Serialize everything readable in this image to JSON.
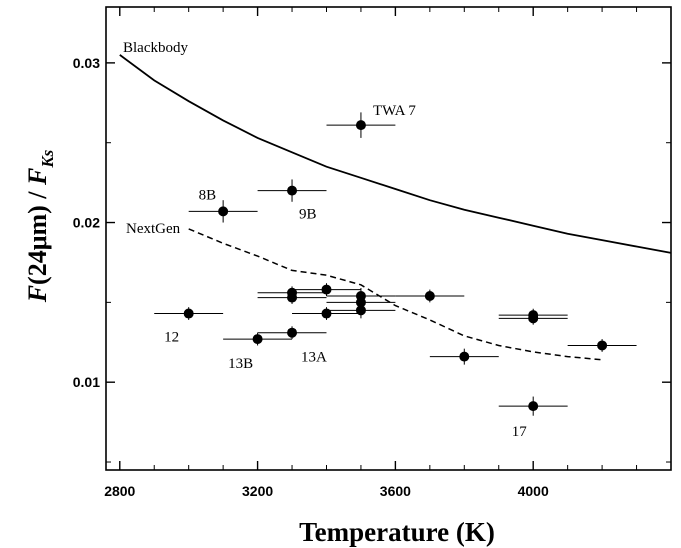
{
  "chart_data": {
    "type": "scatter",
    "title": "",
    "xlabel": "Temperature  (K)",
    "ylabel": {
      "prefix": "F",
      "middle": "(24μm) / ",
      "f": "F",
      "sub": "Ks"
    },
    "xlim": [
      2760,
      4400
    ],
    "ylim": [
      0.0045,
      0.0335
    ],
    "xticks": [
      2800,
      3200,
      3600,
      4000
    ],
    "xtick_labels": [
      "2800",
      "3200",
      "3600",
      "4000"
    ],
    "yticks": [
      0.01,
      0.02,
      0.03
    ],
    "ytick_labels": [
      "0.01",
      "0.02",
      "0.03"
    ],
    "grid": false,
    "series": [
      {
        "name": "Blackbody",
        "type": "line",
        "style": "solid",
        "x": [
          2800,
          2900,
          3000,
          3100,
          3200,
          3300,
          3400,
          3500,
          3600,
          3700,
          3800,
          3900,
          4000,
          4100,
          4200,
          4300,
          4400
        ],
        "y": [
          0.0305,
          0.0289,
          0.0276,
          0.0264,
          0.0253,
          0.0244,
          0.0235,
          0.0228,
          0.0221,
          0.0214,
          0.0208,
          0.0203,
          0.0198,
          0.0193,
          0.0189,
          0.0185,
          0.0181
        ]
      },
      {
        "name": "NextGen",
        "type": "line",
        "style": "dashed",
        "x": [
          3000,
          3100,
          3200,
          3300,
          3400,
          3500,
          3600,
          3700,
          3800,
          3900,
          4000,
          4100,
          4200
        ],
        "y": [
          0.0196,
          0.0187,
          0.0179,
          0.017,
          0.0167,
          0.0161,
          0.0148,
          0.0139,
          0.0129,
          0.0123,
          0.0119,
          0.0116,
          0.0114
        ]
      },
      {
        "name": "",
        "type": "points",
        "points": [
          {
            "x": 3500,
            "y": 0.0261,
            "xerr": 100,
            "yerr": 0.0008,
            "label": "TWA 7"
          },
          {
            "x": 3300,
            "y": 0.022,
            "xerr": 100,
            "yerr": 0.0007,
            "label": "9B"
          },
          {
            "x": 3100,
            "y": 0.0207,
            "xerr": 100,
            "yerr": 0.0007,
            "label": "8B"
          },
          {
            "x": 3000,
            "y": 0.0143,
            "xerr": 100,
            "yerr": 0.0004,
            "label": "12"
          },
          {
            "x": 3200,
            "y": 0.0127,
            "xerr": 100,
            "yerr": 0.0004,
            "label": "13B"
          },
          {
            "x": 3300,
            "y": 0.0131,
            "xerr": 100,
            "yerr": 0.0004,
            "label": "13A"
          },
          {
            "x": 3300,
            "y": 0.0156,
            "xerr": 100,
            "yerr": 0.0004,
            "label": ""
          },
          {
            "x": 3300,
            "y": 0.0153,
            "xerr": 100,
            "yerr": 0.0004,
            "label": ""
          },
          {
            "x": 3400,
            "y": 0.0158,
            "xerr": 100,
            "yerr": 0.0004,
            "label": ""
          },
          {
            "x": 3400,
            "y": 0.0143,
            "xerr": 100,
            "yerr": 0.0004,
            "label": ""
          },
          {
            "x": 3500,
            "y": 0.0154,
            "xerr": 100,
            "yerr": 0.0005,
            "label": ""
          },
          {
            "x": 3500,
            "y": 0.015,
            "xerr": 100,
            "yerr": 0.0005,
            "label": ""
          },
          {
            "x": 3500,
            "y": 0.0145,
            "xerr": 100,
            "yerr": 0.0005,
            "label": ""
          },
          {
            "x": 3700,
            "y": 0.0154,
            "xerr": 100,
            "yerr": 0.0004,
            "label": ""
          },
          {
            "x": 3800,
            "y": 0.0116,
            "xerr": 100,
            "yerr": 0.0005,
            "label": ""
          },
          {
            "x": 4000,
            "y": 0.0142,
            "xerr": 100,
            "yerr": 0.0004,
            "label": ""
          },
          {
            "x": 4000,
            "y": 0.014,
            "xerr": 100,
            "yerr": 0.0004,
            "label": ""
          },
          {
            "x": 4000,
            "y": 0.0085,
            "xerr": 100,
            "yerr": 0.0006,
            "label": "17"
          },
          {
            "x": 4200,
            "y": 0.0123,
            "xerr": 100,
            "yerr": 0.0004,
            "label": ""
          }
        ]
      }
    ]
  }
}
